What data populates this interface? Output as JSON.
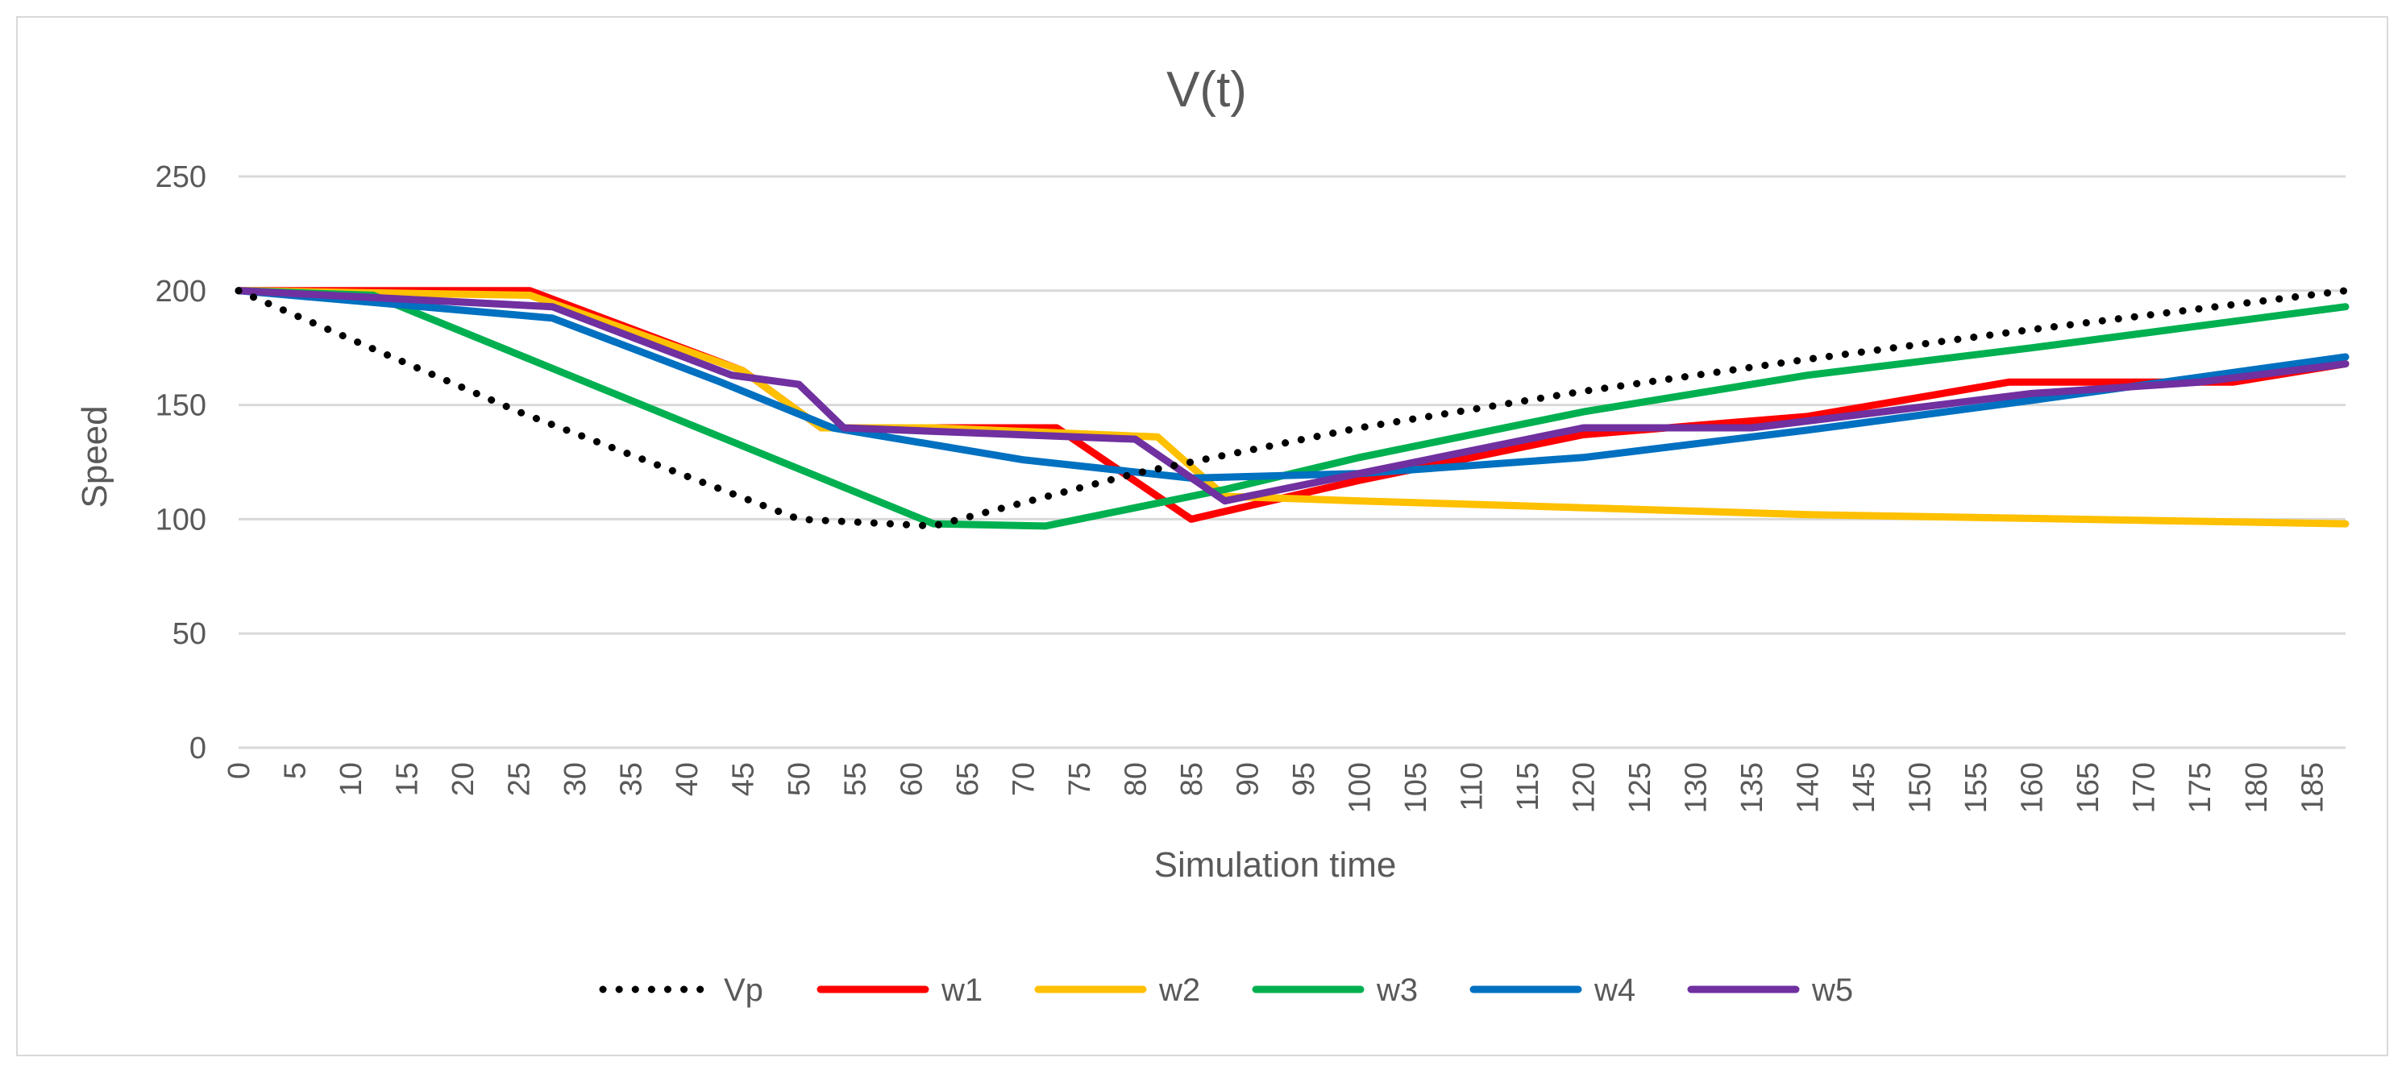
{
  "chart_data": {
    "type": "line",
    "title": "V(t)",
    "xlabel": "Simulation time",
    "ylabel": "Speed",
    "xlim": [
      0,
      188
    ],
    "ylim": [
      0,
      250
    ],
    "yticks": [
      0,
      50,
      100,
      150,
      200,
      250
    ],
    "xticks": [
      0,
      5,
      10,
      15,
      20,
      25,
      30,
      35,
      40,
      45,
      50,
      55,
      60,
      65,
      70,
      75,
      80,
      85,
      90,
      95,
      100,
      105,
      110,
      115,
      120,
      125,
      130,
      135,
      140,
      145,
      150,
      155,
      160,
      165,
      170,
      175,
      180,
      185
    ],
    "grid": "horizontal",
    "legend_position": "bottom",
    "series": [
      {
        "name": "Vp",
        "color": "#000000",
        "style": "dotted",
        "x": [
          0,
          25,
          50,
          62,
          80,
          100,
          120,
          140,
          160,
          188
        ],
        "y": [
          200,
          147,
          100,
          97,
          120,
          140,
          156,
          170,
          183,
          200
        ]
      },
      {
        "name": "w1",
        "color": "#ff0000",
        "style": "solid",
        "x": [
          0,
          26,
          45,
          52,
          73,
          85,
          100,
          120,
          140,
          158,
          178,
          188
        ],
        "y": [
          200,
          200,
          165,
          140,
          140,
          100,
          117,
          137,
          145,
          160,
          160,
          168
        ]
      },
      {
        "name": "w2",
        "color": "#ffc000",
        "style": "solid",
        "x": [
          0,
          26,
          45,
          52,
          62,
          82,
          88,
          100,
          140,
          188
        ],
        "y": [
          200,
          198,
          165,
          140,
          140,
          136,
          110,
          108,
          102,
          98
        ]
      },
      {
        "name": "w3",
        "color": "#00b050",
        "style": "solid",
        "x": [
          0,
          12,
          62,
          72,
          88,
          100,
          120,
          140,
          160,
          188
        ],
        "y": [
          200,
          198,
          98,
          97,
          113,
          127,
          147,
          163,
          175,
          193
        ]
      },
      {
        "name": "w4",
        "color": "#0070c0",
        "style": "solid",
        "x": [
          0,
          28,
          43,
          53,
          70,
          85,
          100,
          120,
          140,
          160,
          188
        ],
        "y": [
          200,
          188,
          160,
          140,
          126,
          118,
          120,
          127,
          139,
          152,
          171
        ]
      },
      {
        "name": "w5",
        "color": "#7030a0",
        "style": "solid",
        "x": [
          0,
          28,
          44,
          50,
          54,
          80,
          88,
          100,
          120,
          135,
          160,
          175,
          188
        ],
        "y": [
          200,
          193,
          163,
          159,
          140,
          135,
          108,
          120,
          140,
          140,
          155,
          160,
          168
        ]
      }
    ]
  }
}
